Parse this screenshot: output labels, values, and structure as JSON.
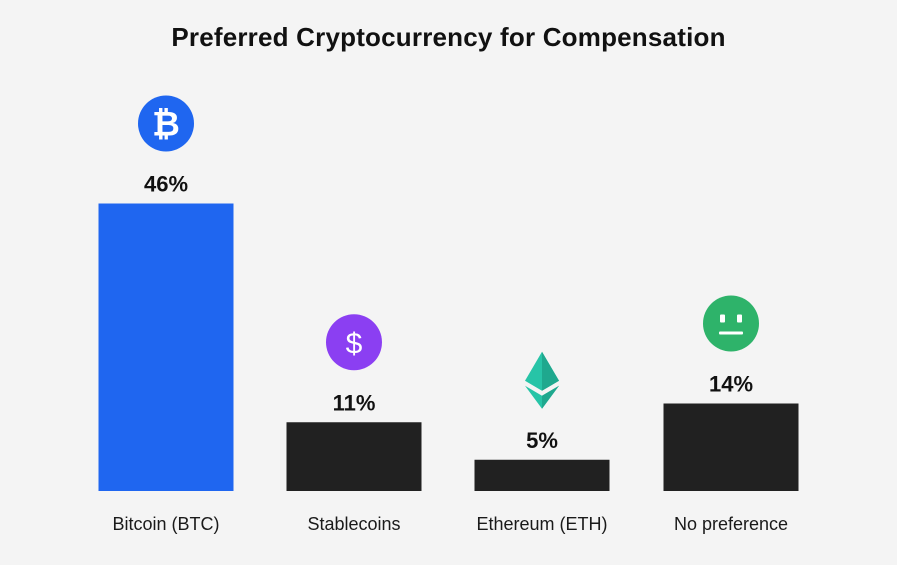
{
  "chart_data": {
    "type": "bar",
    "title": "Preferred Cryptocurrency for Compensation",
    "categories": [
      "Bitcoin (BTC)",
      "Stablecoins",
      "Ethereum (ETH)",
      "No preference"
    ],
    "values": [
      46,
      11,
      5,
      14
    ],
    "value_labels": [
      "46%",
      "11%",
      "5%",
      "14%"
    ],
    "unit": "%",
    "colors": [
      "#1f66f0",
      "#212121",
      "#212121",
      "#212121"
    ],
    "icons": [
      "bitcoin-icon",
      "dollar-icon",
      "ethereum-icon",
      "neutral-face-icon"
    ],
    "icon_colors": [
      "#1f66f0",
      "#8b3ff2",
      "#27c4a7",
      "#2eb36a"
    ],
    "xlabel": "",
    "ylabel": "",
    "grid": false,
    "legend": "none"
  }
}
